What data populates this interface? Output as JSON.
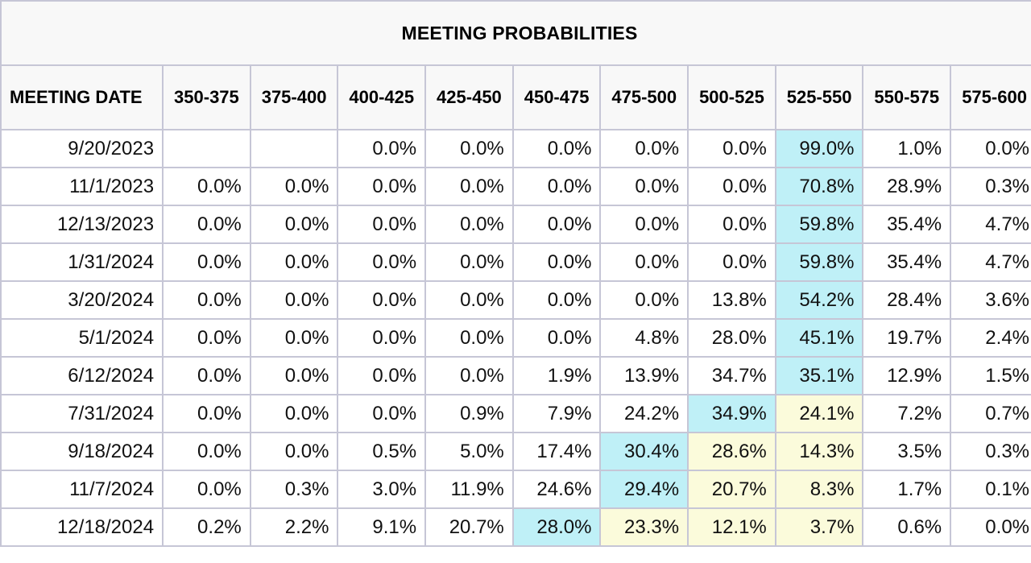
{
  "chart_data": {
    "type": "table",
    "title": "MEETING PROBABILITIES",
    "columns": [
      "MEETING DATE",
      "350-375",
      "375-400",
      "400-425",
      "425-450",
      "450-475",
      "475-500",
      "500-525",
      "525-550",
      "550-575",
      "575-600"
    ],
    "rows": [
      {
        "date": "9/20/2023",
        "values": [
          "",
          "",
          "0.0%",
          "0.0%",
          "0.0%",
          "0.0%",
          "0.0%",
          "99.0%",
          "1.0%",
          "0.0%"
        ],
        "hl": [
          "",
          "",
          "",
          "",
          "",
          "",
          "",
          "blue",
          "",
          ""
        ]
      },
      {
        "date": "11/1/2023",
        "values": [
          "0.0%",
          "0.0%",
          "0.0%",
          "0.0%",
          "0.0%",
          "0.0%",
          "0.0%",
          "70.8%",
          "28.9%",
          "0.3%"
        ],
        "hl": [
          "",
          "",
          "",
          "",
          "",
          "",
          "",
          "blue",
          "",
          ""
        ]
      },
      {
        "date": "12/13/2023",
        "values": [
          "0.0%",
          "0.0%",
          "0.0%",
          "0.0%",
          "0.0%",
          "0.0%",
          "0.0%",
          "59.8%",
          "35.4%",
          "4.7%"
        ],
        "hl": [
          "",
          "",
          "",
          "",
          "",
          "",
          "",
          "blue",
          "",
          ""
        ]
      },
      {
        "date": "1/31/2024",
        "values": [
          "0.0%",
          "0.0%",
          "0.0%",
          "0.0%",
          "0.0%",
          "0.0%",
          "0.0%",
          "59.8%",
          "35.4%",
          "4.7%"
        ],
        "hl": [
          "",
          "",
          "",
          "",
          "",
          "",
          "",
          "blue",
          "",
          ""
        ]
      },
      {
        "date": "3/20/2024",
        "values": [
          "0.0%",
          "0.0%",
          "0.0%",
          "0.0%",
          "0.0%",
          "0.0%",
          "13.8%",
          "54.2%",
          "28.4%",
          "3.6%"
        ],
        "hl": [
          "",
          "",
          "",
          "",
          "",
          "",
          "",
          "blue",
          "",
          ""
        ]
      },
      {
        "date": "5/1/2024",
        "values": [
          "0.0%",
          "0.0%",
          "0.0%",
          "0.0%",
          "0.0%",
          "4.8%",
          "28.0%",
          "45.1%",
          "19.7%",
          "2.4%"
        ],
        "hl": [
          "",
          "",
          "",
          "",
          "",
          "",
          "",
          "blue",
          "",
          ""
        ]
      },
      {
        "date": "6/12/2024",
        "values": [
          "0.0%",
          "0.0%",
          "0.0%",
          "0.0%",
          "1.9%",
          "13.9%",
          "34.7%",
          "35.1%",
          "12.9%",
          "1.5%"
        ],
        "hl": [
          "",
          "",
          "",
          "",
          "",
          "",
          "",
          "blue",
          "",
          ""
        ]
      },
      {
        "date": "7/31/2024",
        "values": [
          "0.0%",
          "0.0%",
          "0.0%",
          "0.9%",
          "7.9%",
          "24.2%",
          "34.9%",
          "24.1%",
          "7.2%",
          "0.7%"
        ],
        "hl": [
          "",
          "",
          "",
          "",
          "",
          "",
          "blue",
          "yellow",
          "",
          ""
        ]
      },
      {
        "date": "9/18/2024",
        "values": [
          "0.0%",
          "0.0%",
          "0.5%",
          "5.0%",
          "17.4%",
          "30.4%",
          "28.6%",
          "14.3%",
          "3.5%",
          "0.3%"
        ],
        "hl": [
          "",
          "",
          "",
          "",
          "",
          "blue",
          "yellow",
          "yellow",
          "",
          ""
        ]
      },
      {
        "date": "11/7/2024",
        "values": [
          "0.0%",
          "0.3%",
          "3.0%",
          "11.9%",
          "24.6%",
          "29.4%",
          "20.7%",
          "8.3%",
          "1.7%",
          "0.1%"
        ],
        "hl": [
          "",
          "",
          "",
          "",
          "",
          "blue",
          "yellow",
          "yellow",
          "",
          ""
        ]
      },
      {
        "date": "12/18/2024",
        "values": [
          "0.2%",
          "2.2%",
          "9.1%",
          "20.7%",
          "28.0%",
          "23.3%",
          "12.1%",
          "3.7%",
          "0.6%",
          "0.0%"
        ],
        "hl": [
          "",
          "",
          "",
          "",
          "blue",
          "yellow",
          "yellow",
          "yellow",
          "",
          ""
        ]
      }
    ]
  },
  "colors": {
    "highlight_blue": "#bff0f7",
    "highlight_yellow": "#fbfbdb",
    "header_bg": "#f8f8f8",
    "grid": "#c6c6d6"
  }
}
